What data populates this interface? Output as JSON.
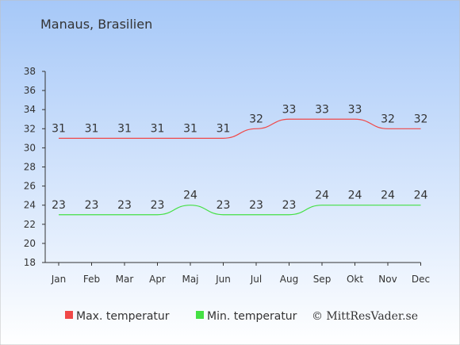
{
  "title": "Manaus, Brasilien",
  "credit": "© MittResVader.se",
  "colors": {
    "bg_top": "#a6c8f8",
    "bg_bottom": "#ffffff",
    "max_series": "#f04848",
    "min_series": "#44e044",
    "axis": "#333333"
  },
  "chart_data": {
    "type": "line",
    "title": "Manaus, Brasilien",
    "categories": [
      "Jan",
      "Feb",
      "Mar",
      "Apr",
      "Maj",
      "Jun",
      "Jul",
      "Aug",
      "Sep",
      "Okt",
      "Nov",
      "Dec"
    ],
    "ylim": [
      18,
      38
    ],
    "yticks": [
      18,
      20,
      22,
      24,
      26,
      28,
      30,
      32,
      34,
      36,
      38
    ],
    "grid": false,
    "legend_position": "bottom",
    "series": [
      {
        "name": "Max. temperatur",
        "color": "#f04848",
        "values": [
          31,
          31,
          31,
          31,
          31,
          31,
          32,
          33,
          33,
          33,
          32,
          32
        ]
      },
      {
        "name": "Min. temperatur",
        "color": "#44e044",
        "values": [
          23,
          23,
          23,
          23,
          24,
          23,
          23,
          23,
          24,
          24,
          24,
          24
        ]
      }
    ]
  }
}
